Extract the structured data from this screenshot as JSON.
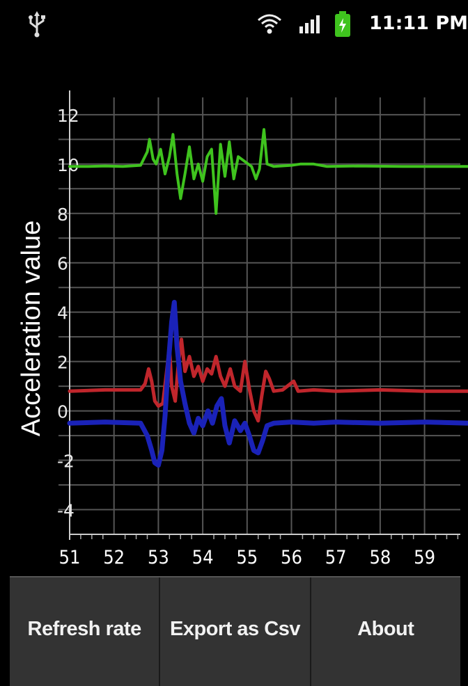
{
  "status_bar": {
    "time": "11:11 PM",
    "icons": [
      "usb-icon",
      "wifi-icon",
      "signal-icon",
      "battery-icon"
    ]
  },
  "menu": {
    "items": [
      {
        "label": "Refresh rate"
      },
      {
        "label": "Export as Csv"
      },
      {
        "label": "About"
      }
    ]
  },
  "chart_data": {
    "type": "line",
    "ylabel": "Acceleration value",
    "xlim": [
      51,
      60
    ],
    "ylim": [
      -5,
      12.7
    ],
    "grid": true,
    "background": "#000000",
    "x_ticks": [
      51,
      52,
      53,
      54,
      55,
      56,
      57,
      58,
      59
    ],
    "y_ticks": [
      -4,
      -2,
      0,
      2,
      4,
      6,
      8,
      10,
      12
    ],
    "series": [
      {
        "color": "#3fc31e",
        "points": [
          [
            51.0,
            9.9
          ],
          [
            51.4,
            9.9
          ],
          [
            51.8,
            9.92
          ],
          [
            52.2,
            9.9
          ],
          [
            52.6,
            9.95
          ],
          [
            52.75,
            10.5
          ],
          [
            52.8,
            11.0
          ],
          [
            52.88,
            10.2
          ],
          [
            52.95,
            10.0
          ],
          [
            53.05,
            10.6
          ],
          [
            53.15,
            9.6
          ],
          [
            53.25,
            10.3
          ],
          [
            53.33,
            11.2
          ],
          [
            53.42,
            9.6
          ],
          [
            53.5,
            8.6
          ],
          [
            53.6,
            9.6
          ],
          [
            53.7,
            10.7
          ],
          [
            53.8,
            9.4
          ],
          [
            53.9,
            10.0
          ],
          [
            54.0,
            9.3
          ],
          [
            54.1,
            10.3
          ],
          [
            54.2,
            10.6
          ],
          [
            54.3,
            8.0
          ],
          [
            54.4,
            10.8
          ],
          [
            54.5,
            9.5
          ],
          [
            54.6,
            10.9
          ],
          [
            54.7,
            9.4
          ],
          [
            54.8,
            10.3
          ],
          [
            54.95,
            10.1
          ],
          [
            55.1,
            9.9
          ],
          [
            55.2,
            9.4
          ],
          [
            55.28,
            9.8
          ],
          [
            55.38,
            11.4
          ],
          [
            55.45,
            10.0
          ],
          [
            55.6,
            9.9
          ],
          [
            56.0,
            9.95
          ],
          [
            56.2,
            10.0
          ],
          [
            56.5,
            10.0
          ],
          [
            56.8,
            9.9
          ],
          [
            57.5,
            9.92
          ],
          [
            58.5,
            9.9
          ],
          [
            59.5,
            9.9
          ],
          [
            60.0,
            9.9
          ]
        ]
      },
      {
        "color": "#c0262c",
        "points": [
          [
            51.0,
            0.8
          ],
          [
            51.8,
            0.85
          ],
          [
            52.6,
            0.85
          ],
          [
            52.7,
            1.1
          ],
          [
            52.78,
            1.7
          ],
          [
            52.85,
            1.2
          ],
          [
            52.92,
            0.4
          ],
          [
            53.0,
            0.2
          ],
          [
            53.1,
            0.3
          ],
          [
            53.18,
            1.5
          ],
          [
            53.25,
            2.6
          ],
          [
            53.3,
            1.0
          ],
          [
            53.38,
            0.4
          ],
          [
            53.45,
            1.9
          ],
          [
            53.52,
            2.9
          ],
          [
            53.6,
            1.6
          ],
          [
            53.7,
            2.2
          ],
          [
            53.8,
            1.4
          ],
          [
            53.9,
            1.8
          ],
          [
            54.0,
            1.2
          ],
          [
            54.1,
            1.7
          ],
          [
            54.2,
            1.5
          ],
          [
            54.3,
            2.2
          ],
          [
            54.4,
            1.4
          ],
          [
            54.5,
            1.0
          ],
          [
            54.62,
            1.7
          ],
          [
            54.72,
            1.0
          ],
          [
            54.85,
            0.8
          ],
          [
            54.95,
            2.0
          ],
          [
            55.05,
            0.9
          ],
          [
            55.15,
            0.0
          ],
          [
            55.25,
            -0.4
          ],
          [
            55.33,
            0.6
          ],
          [
            55.42,
            1.6
          ],
          [
            55.5,
            1.3
          ],
          [
            55.6,
            0.8
          ],
          [
            55.8,
            0.85
          ],
          [
            56.05,
            1.2
          ],
          [
            56.15,
            0.8
          ],
          [
            56.5,
            0.85
          ],
          [
            57.0,
            0.8
          ],
          [
            58.0,
            0.85
          ],
          [
            59.0,
            0.8
          ],
          [
            60.0,
            0.8
          ]
        ]
      },
      {
        "color": "#1a22b8",
        "points": [
          [
            51.0,
            -0.5
          ],
          [
            51.8,
            -0.45
          ],
          [
            52.6,
            -0.5
          ],
          [
            52.75,
            -1.0
          ],
          [
            52.85,
            -1.6
          ],
          [
            52.92,
            -2.1
          ],
          [
            53.0,
            -2.2
          ],
          [
            53.08,
            -1.6
          ],
          [
            53.15,
            -0.2
          ],
          [
            53.22,
            1.8
          ],
          [
            53.3,
            3.6
          ],
          [
            53.36,
            4.4
          ],
          [
            53.42,
            2.6
          ],
          [
            53.5,
            1.2
          ],
          [
            53.6,
            0.3
          ],
          [
            53.7,
            -0.5
          ],
          [
            53.8,
            -0.9
          ],
          [
            53.9,
            -0.3
          ],
          [
            54.0,
            -0.6
          ],
          [
            54.12,
            0.0
          ],
          [
            54.22,
            -0.5
          ],
          [
            54.32,
            0.2
          ],
          [
            54.42,
            0.5
          ],
          [
            54.5,
            -0.6
          ],
          [
            54.6,
            -1.3
          ],
          [
            54.72,
            -0.4
          ],
          [
            54.85,
            -0.8
          ],
          [
            54.95,
            -0.5
          ],
          [
            55.05,
            -1.0
          ],
          [
            55.15,
            -1.6
          ],
          [
            55.25,
            -1.7
          ],
          [
            55.35,
            -1.2
          ],
          [
            55.45,
            -0.6
          ],
          [
            55.6,
            -0.5
          ],
          [
            56.0,
            -0.45
          ],
          [
            56.5,
            -0.5
          ],
          [
            57.0,
            -0.45
          ],
          [
            58.0,
            -0.5
          ],
          [
            59.0,
            -0.45
          ],
          [
            60.0,
            -0.5
          ]
        ]
      }
    ]
  }
}
